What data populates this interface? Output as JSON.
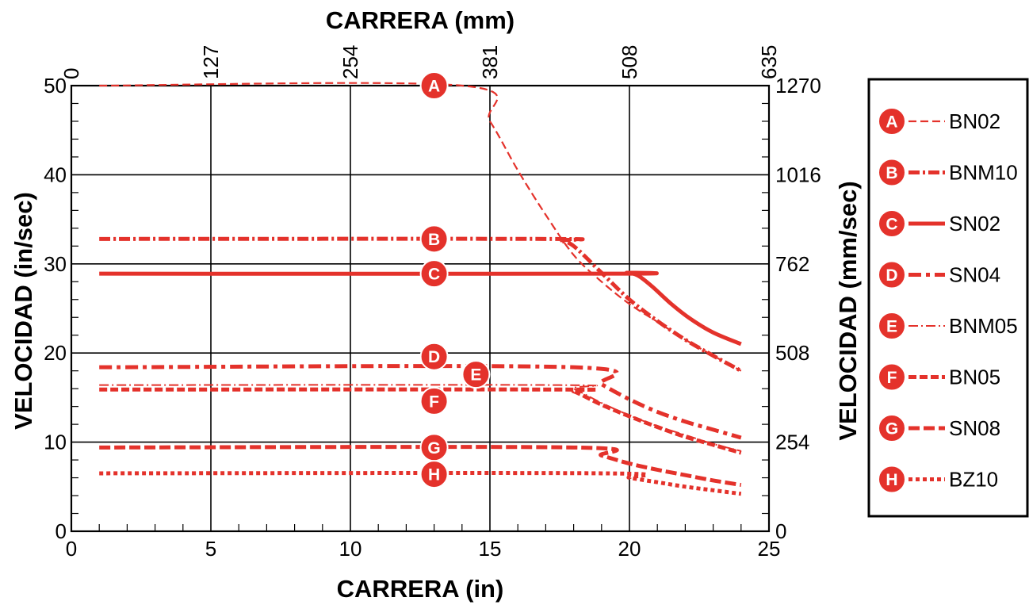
{
  "chart_data": {
    "type": "line",
    "x_bottom_label": "CARRERA (in)",
    "x_top_label": "CARRERA (mm)",
    "y_left_label": "VELOCIDAD (in/sec)",
    "y_right_label": "VELOCIDAD (mm/sec)",
    "x_range": [
      0,
      25
    ],
    "y_range": [
      0,
      50
    ],
    "x_bottom_ticks": [
      "0",
      "5",
      "10",
      "15",
      "20",
      "25"
    ],
    "x_top_ticks": [
      "0",
      "127",
      "254",
      "381",
      "508",
      "635"
    ],
    "y_left_ticks": [
      "0",
      "10",
      "20",
      "30",
      "40",
      "50"
    ],
    "y_right_ticks": [
      "0",
      "254",
      "508",
      "762",
      "1016",
      "1270"
    ],
    "grid": true,
    "legend_position": "right",
    "color": "#e4322b",
    "series": [
      {
        "letter": "A",
        "name": "BN02",
        "label_x": 13,
        "label_y": 50,
        "x": [
          1,
          14,
          15,
          16,
          17,
          18,
          19,
          20,
          21,
          22,
          23,
          24
        ],
        "y": [
          50,
          50,
          46,
          40.5,
          35.5,
          31,
          28,
          25.5,
          23.5,
          21.5,
          19.7,
          18
        ]
      },
      {
        "letter": "B",
        "name": "BNM10",
        "label_x": 13,
        "label_y": 32.8,
        "x": [
          1,
          17,
          17.5,
          18,
          19,
          20,
          21,
          22,
          23,
          24
        ],
        "y": [
          32.8,
          32.8,
          32.6,
          32,
          29,
          26,
          23.6,
          21.5,
          19.7,
          18
        ]
      },
      {
        "letter": "C",
        "name": "SN02",
        "label_x": 13,
        "label_y": 28.9,
        "x": [
          1,
          19.5,
          19.9,
          20.3,
          20.8,
          21.5,
          22.2,
          23,
          24
        ],
        "y": [
          28.9,
          28.9,
          29,
          28.7,
          27.5,
          25.5,
          23.8,
          22.3,
          21
        ]
      },
      {
        "letter": "D",
        "name": "SN04",
        "label_x": 13,
        "label_y": 19.6,
        "x": [
          1,
          18,
          19,
          20,
          21,
          22,
          23,
          24
        ],
        "y": [
          18.4,
          18.4,
          16.5,
          14.8,
          13.4,
          12.3,
          11.4,
          10.5
        ]
      },
      {
        "letter": "E",
        "name": "BNM05",
        "label_x": 14.5,
        "label_y": 17.6,
        "x": [
          1,
          17.5,
          18,
          19,
          20,
          21,
          22,
          23,
          24
        ],
        "y": [
          16.4,
          16.4,
          16,
          14.4,
          13,
          11.8,
          10.8,
          9.8,
          9
        ]
      },
      {
        "letter": "F",
        "name": "BN05",
        "label_x": 13,
        "label_y": 14.6,
        "x": [
          1,
          17.5,
          18,
          19,
          20,
          21,
          22,
          23,
          24
        ],
        "y": [
          15.9,
          15.9,
          15.7,
          14.2,
          12.9,
          11.7,
          10.6,
          9.7,
          8.8
        ]
      },
      {
        "letter": "G",
        "name": "SN08",
        "label_x": 13,
        "label_y": 9.4,
        "x": [
          1,
          18,
          19,
          20,
          21,
          22,
          23,
          24
        ],
        "y": [
          9.4,
          9.4,
          8.5,
          7.6,
          6.9,
          6.3,
          5.7,
          5.2
        ]
      },
      {
        "letter": "H",
        "name": "BZ10",
        "label_x": 13,
        "label_y": 6.4,
        "x": [
          1,
          19,
          20,
          21,
          22,
          23,
          24
        ],
        "y": [
          6.5,
          6.5,
          6,
          5.5,
          5,
          4.6,
          4.2
        ]
      }
    ]
  }
}
